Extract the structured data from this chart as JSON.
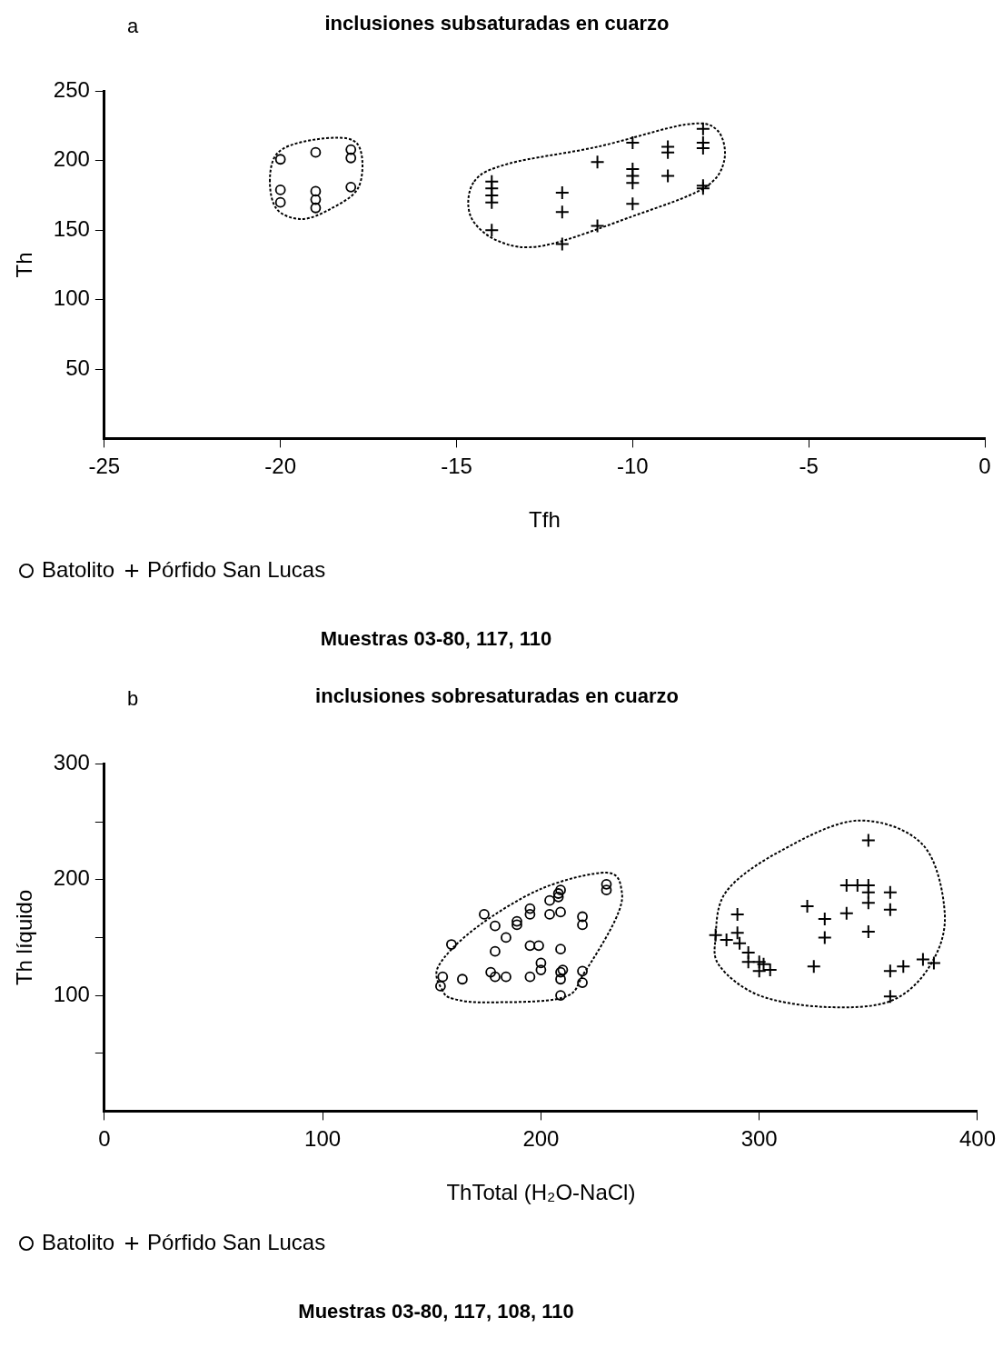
{
  "chart_data": [
    {
      "type": "scatter",
      "title": "inclusiones subsaturadas en cuarzo",
      "xlabel": "Tfh",
      "ylabel": "Th",
      "annotations": [
        "a",
        "Muestras 03-80, 117, 110"
      ],
      "legend": "bottom left",
      "grid": false,
      "xlim": [
        -25,
        0
      ],
      "xticks": [
        -25,
        -20,
        -15,
        -10,
        -5,
        0
      ],
      "ylim": [
        0,
        250
      ],
      "yticks": [
        50,
        100,
        150,
        200,
        250
      ],
      "series": [
        {
          "name": "Batolito",
          "color": "#000000",
          "marker": "circle",
          "x": [
            -20,
            -20,
            -20,
            -19,
            -19,
            -19,
            -19,
            -18,
            -18,
            -18
          ],
          "values": [
            201,
            179,
            170,
            206,
            178,
            172,
            166,
            208,
            202,
            181
          ]
        },
        {
          "name": "Pórfido San Lucas",
          "color": "#000000",
          "marker": "cross",
          "x": [
            -14,
            -14,
            -14,
            -14,
            -14,
            -12,
            -12,
            -12,
            -11,
            -11,
            -10,
            -10,
            -10,
            -10,
            -10,
            -9,
            -9,
            -9,
            -8,
            -8,
            -8,
            -8,
            -8
          ],
          "values": [
            185,
            180,
            175,
            170,
            150,
            177,
            163,
            140,
            199,
            153,
            213,
            194,
            189,
            184,
            169,
            210,
            206,
            189,
            223,
            213,
            209,
            182,
            180
          ]
        }
      ]
    },
    {
      "type": "scatter",
      "title": "inclusiones sobresaturadas en cuarzo",
      "xlabel": "ThTotal (H₂O-NaCl)",
      "ylabel": "Th líquido",
      "annotations": [
        "b",
        "Muestras 03-80, 117, 108, 110"
      ],
      "legend": "bottom left",
      "grid": false,
      "xlim": [
        0,
        400
      ],
      "xticks": [
        0,
        100,
        200,
        300,
        400
      ],
      "ylim": [
        0,
        300
      ],
      "yticks": [
        {
          "value": 50,
          "label": null
        },
        100,
        {
          "value": 150,
          "label": null
        },
        200,
        {
          "value": 250,
          "label": null
        },
        300
      ],
      "series": [
        {
          "name": "Batolito",
          "color": "#000000",
          "marker": "circle",
          "x": [
            230,
            230,
            209,
            208,
            208,
            204,
            195,
            195,
            209,
            204,
            219,
            219,
            174,
            179,
            189,
            189,
            184,
            159,
            179,
            195,
            199,
            209,
            200,
            200,
            210,
            209,
            209,
            219,
            219,
            177,
            179,
            184,
            195,
            164,
            155,
            154,
            209
          ],
          "values": [
            196,
            191,
            191,
            188,
            185,
            182,
            175,
            170,
            172,
            170,
            168,
            161,
            170,
            160,
            164,
            161,
            150,
            144,
            138,
            143,
            143,
            140,
            128,
            122,
            122,
            120,
            114,
            121,
            111,
            120,
            116,
            116,
            116,
            114,
            116,
            108,
            100
          ]
        },
        {
          "name": "Pórfido San Lucas",
          "color": "#000000",
          "marker": "cross",
          "x": [
            350,
            340,
            345,
            350,
            350,
            350,
            360,
            360,
            322,
            340,
            330,
            330,
            350,
            290,
            280,
            285,
            290,
            291,
            295,
            295,
            300,
            300,
            305,
            302,
            325,
            360,
            366,
            375,
            380,
            360
          ],
          "values": [
            234,
            195,
            195,
            195,
            189,
            180,
            189,
            174,
            177,
            171,
            166,
            150,
            155,
            170,
            152,
            148,
            154,
            145,
            137,
            129,
            129,
            121,
            122,
            127,
            125,
            121,
            125,
            131,
            128,
            99
          ]
        }
      ]
    }
  ]
}
